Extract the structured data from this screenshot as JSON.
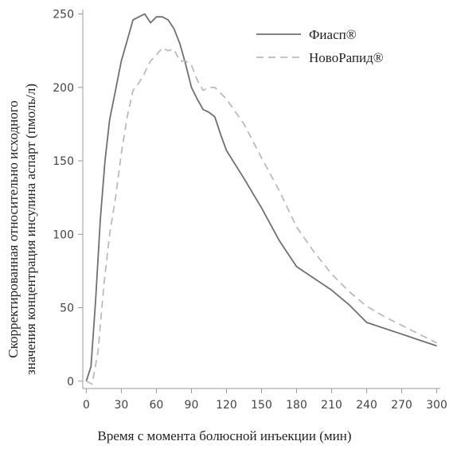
{
  "chart_data": {
    "type": "line",
    "title": "",
    "xlabel": "Время с момента болюсной инъекции (мин)",
    "ylabel": [
      "Скорректированная относительно исходного",
      "значения концентрация инсулина аспарт (пмоль/л)"
    ],
    "xlim": [
      -3,
      303
    ],
    "ylim": [
      -5,
      253
    ],
    "xticks": [
      0,
      30,
      60,
      90,
      120,
      150,
      180,
      210,
      240,
      270,
      300
    ],
    "yticks": [
      0,
      50,
      100,
      150,
      200,
      250
    ],
    "grid": false,
    "legend_position": "top-right",
    "series": [
      {
        "name": "Фиасп®",
        "style": "solid",
        "color": "#707070",
        "points": [
          [
            0,
            0
          ],
          [
            4,
            10
          ],
          [
            8,
            55
          ],
          [
            12,
            110
          ],
          [
            16,
            150
          ],
          [
            20,
            178
          ],
          [
            25,
            198
          ],
          [
            30,
            218
          ],
          [
            35,
            232
          ],
          [
            40,
            246
          ],
          [
            45,
            248
          ],
          [
            50,
            250
          ],
          [
            55,
            244
          ],
          [
            60,
            248
          ],
          [
            65,
            248
          ],
          [
            70,
            246
          ],
          [
            75,
            240
          ],
          [
            80,
            230
          ],
          [
            85,
            216
          ],
          [
            90,
            200
          ],
          [
            95,
            192
          ],
          [
            100,
            185
          ],
          [
            105,
            183
          ],
          [
            110,
            180
          ],
          [
            115,
            168
          ],
          [
            120,
            157
          ],
          [
            135,
            138
          ],
          [
            150,
            118
          ],
          [
            165,
            96
          ],
          [
            180,
            78
          ],
          [
            195,
            70
          ],
          [
            210,
            62
          ],
          [
            225,
            52
          ],
          [
            240,
            40
          ],
          [
            255,
            36
          ],
          [
            270,
            32
          ],
          [
            285,
            28
          ],
          [
            300,
            24
          ]
        ]
      },
      {
        "name": "НовоРапид®",
        "style": "dashed",
        "color": "#bbbbbb",
        "points": [
          [
            0,
            0
          ],
          [
            5,
            -2
          ],
          [
            10,
            20
          ],
          [
            15,
            65
          ],
          [
            20,
            100
          ],
          [
            25,
            125
          ],
          [
            30,
            155
          ],
          [
            35,
            180
          ],
          [
            40,
            198
          ],
          [
            45,
            203
          ],
          [
            50,
            210
          ],
          [
            55,
            218
          ],
          [
            60,
            222
          ],
          [
            65,
            227
          ],
          [
            70,
            225
          ],
          [
            75,
            226
          ],
          [
            80,
            218
          ],
          [
            85,
            218
          ],
          [
            90,
            215
          ],
          [
            95,
            205
          ],
          [
            100,
            198
          ],
          [
            105,
            200
          ],
          [
            110,
            200
          ],
          [
            120,
            192
          ],
          [
            135,
            175
          ],
          [
            150,
            152
          ],
          [
            165,
            130
          ],
          [
            180,
            105
          ],
          [
            195,
            88
          ],
          [
            210,
            73
          ],
          [
            225,
            61
          ],
          [
            240,
            51
          ],
          [
            255,
            44
          ],
          [
            270,
            38
          ],
          [
            285,
            32
          ],
          [
            300,
            26
          ]
        ]
      }
    ]
  }
}
